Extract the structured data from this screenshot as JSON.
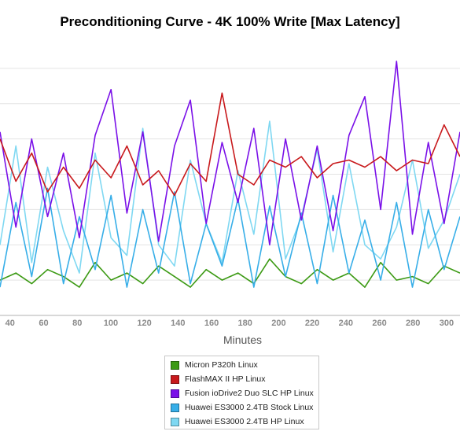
{
  "chart_data": {
    "type": "line",
    "title": "Preconditioning Curve - 4K 100% Write [Max Latency]",
    "xlabel": "Minutes",
    "ylabel": "",
    "xlim": [
      34,
      308
    ],
    "ylim": [
      0,
      8
    ],
    "x_ticks": [
      40,
      60,
      80,
      100,
      120,
      140,
      160,
      180,
      200,
      220,
      240,
      260,
      280,
      300
    ],
    "grid": "horizontal",
    "legend_position": "bottom",
    "series": [
      {
        "name": "Micron P320h Linux",
        "color": "#3c9a14",
        "values": [
          1.0,
          1.2,
          0.9,
          1.3,
          1.1,
          0.8,
          1.5,
          1.0,
          1.2,
          0.9,
          1.4,
          1.1,
          0.8,
          1.3,
          1.0,
          1.2,
          0.9,
          1.6,
          1.1,
          0.9,
          1.3,
          1.0,
          1.2,
          0.8,
          1.5,
          1.0,
          1.1,
          0.9,
          1.4,
          1.2
        ]
      },
      {
        "name": "FlashMAX II HP Linux",
        "color": "#c8191c",
        "values": [
          5.0,
          3.8,
          4.6,
          3.5,
          4.2,
          3.6,
          4.4,
          3.9,
          4.8,
          3.7,
          4.1,
          3.4,
          4.3,
          3.8,
          6.3,
          4.0,
          3.7,
          4.4,
          4.2,
          4.5,
          3.9,
          4.3,
          4.4,
          4.2,
          4.5,
          4.1,
          4.4,
          4.3,
          5.4,
          4.5
        ]
      },
      {
        "name": "Fusion ioDrive2 Duo SLC HP Linux",
        "color": "#7a10e8",
        "values": [
          5.2,
          2.5,
          5.0,
          2.8,
          4.6,
          2.2,
          5.1,
          6.4,
          2.9,
          5.2,
          2.1,
          4.8,
          6.1,
          2.6,
          4.9,
          3.2,
          5.3,
          2.0,
          5.0,
          2.7,
          4.8,
          2.4,
          5.1,
          6.2,
          3.0,
          7.2,
          2.3,
          4.9,
          2.6,
          5.2
        ]
      },
      {
        "name": "Huawei ES3000 2.4TB Stock Linux",
        "color": "#37aee8",
        "values": [
          0.8,
          3.2,
          1.1,
          3.6,
          0.9,
          2.8,
          1.3,
          3.4,
          0.8,
          3.0,
          1.2,
          3.5,
          0.9,
          2.6,
          1.4,
          3.3,
          0.8,
          3.1,
          1.1,
          2.9,
          0.9,
          3.4,
          1.2,
          2.7,
          1.0,
          3.2,
          0.8,
          3.0,
          1.3,
          2.8
        ]
      },
      {
        "name": "Huawei ES3000 2.4TB HP Linux",
        "color": "#7fd8f2",
        "values": [
          2.0,
          4.8,
          1.5,
          4.2,
          2.4,
          1.2,
          4.6,
          2.2,
          1.7,
          5.3,
          2.0,
          1.4,
          4.4,
          2.6,
          1.5,
          4.1,
          2.3,
          5.5,
          1.6,
          2.8,
          4.7,
          1.8,
          4.3,
          2.0,
          1.6,
          2.5,
          4.4,
          1.9,
          2.7,
          4.0
        ]
      }
    ]
  }
}
